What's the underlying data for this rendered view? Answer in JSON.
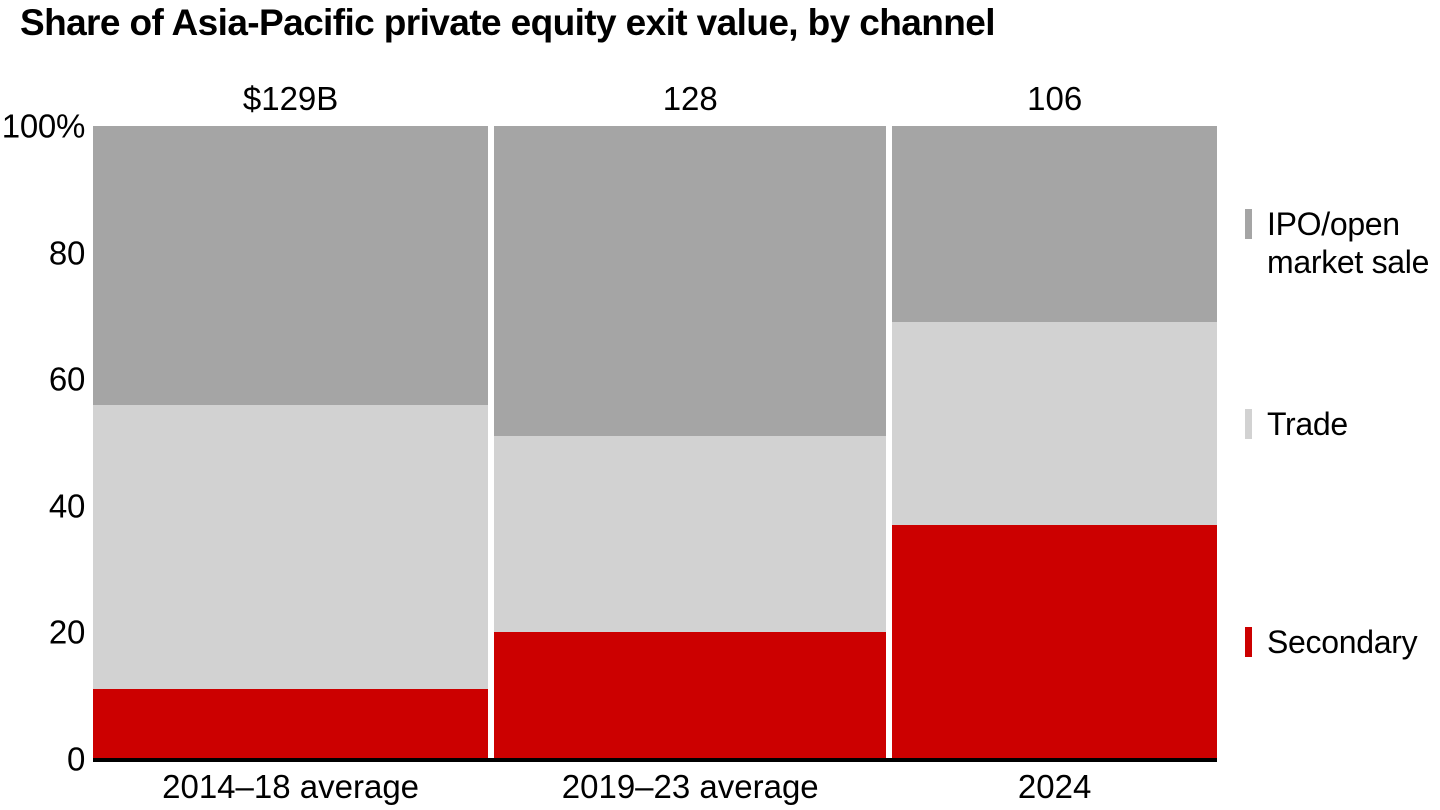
{
  "chart_data": {
    "type": "bar",
    "subtype": "stacked-100-percent-variable-width",
    "title": "Share of Asia-Pacific private equity exit value, by channel",
    "categories": [
      "2014–18 average",
      "2019–23 average",
      "2024"
    ],
    "bar_total_labels": [
      "$129B",
      "128",
      "106"
    ],
    "bar_total_values": [
      129,
      128,
      106
    ],
    "series": [
      {
        "name": "Secondary",
        "color": "#cc0000",
        "values": [
          11,
          20,
          37
        ]
      },
      {
        "name": "Trade",
        "color": "#d2d2d2",
        "values": [
          45,
          31,
          32
        ]
      },
      {
        "name": "IPO/open market sale",
        "color": "#a5a5a5",
        "values": [
          44,
          49,
          31
        ]
      }
    ],
    "y_axis": {
      "unit": "%",
      "ylim": [
        0,
        100
      ],
      "ticks": [
        100,
        80,
        60,
        40,
        20,
        0
      ],
      "tick_labels": [
        "100%",
        "80",
        "60",
        "40",
        "20",
        "0"
      ]
    },
    "legend": {
      "position": "right",
      "items": [
        {
          "label": "IPO/open market sale",
          "color": "#a5a5a5"
        },
        {
          "label": "Trade",
          "color": "#d2d2d2"
        },
        {
          "label": "Secondary",
          "color": "#cc0000"
        }
      ]
    },
    "grid": false,
    "colors": {
      "background": "#ffffff",
      "text": "#000000",
      "axis_line": "#000000",
      "secondary": "#cc0000",
      "trade": "#d2d2d2",
      "ipo_open_market_sale": "#a5a5a5"
    }
  }
}
